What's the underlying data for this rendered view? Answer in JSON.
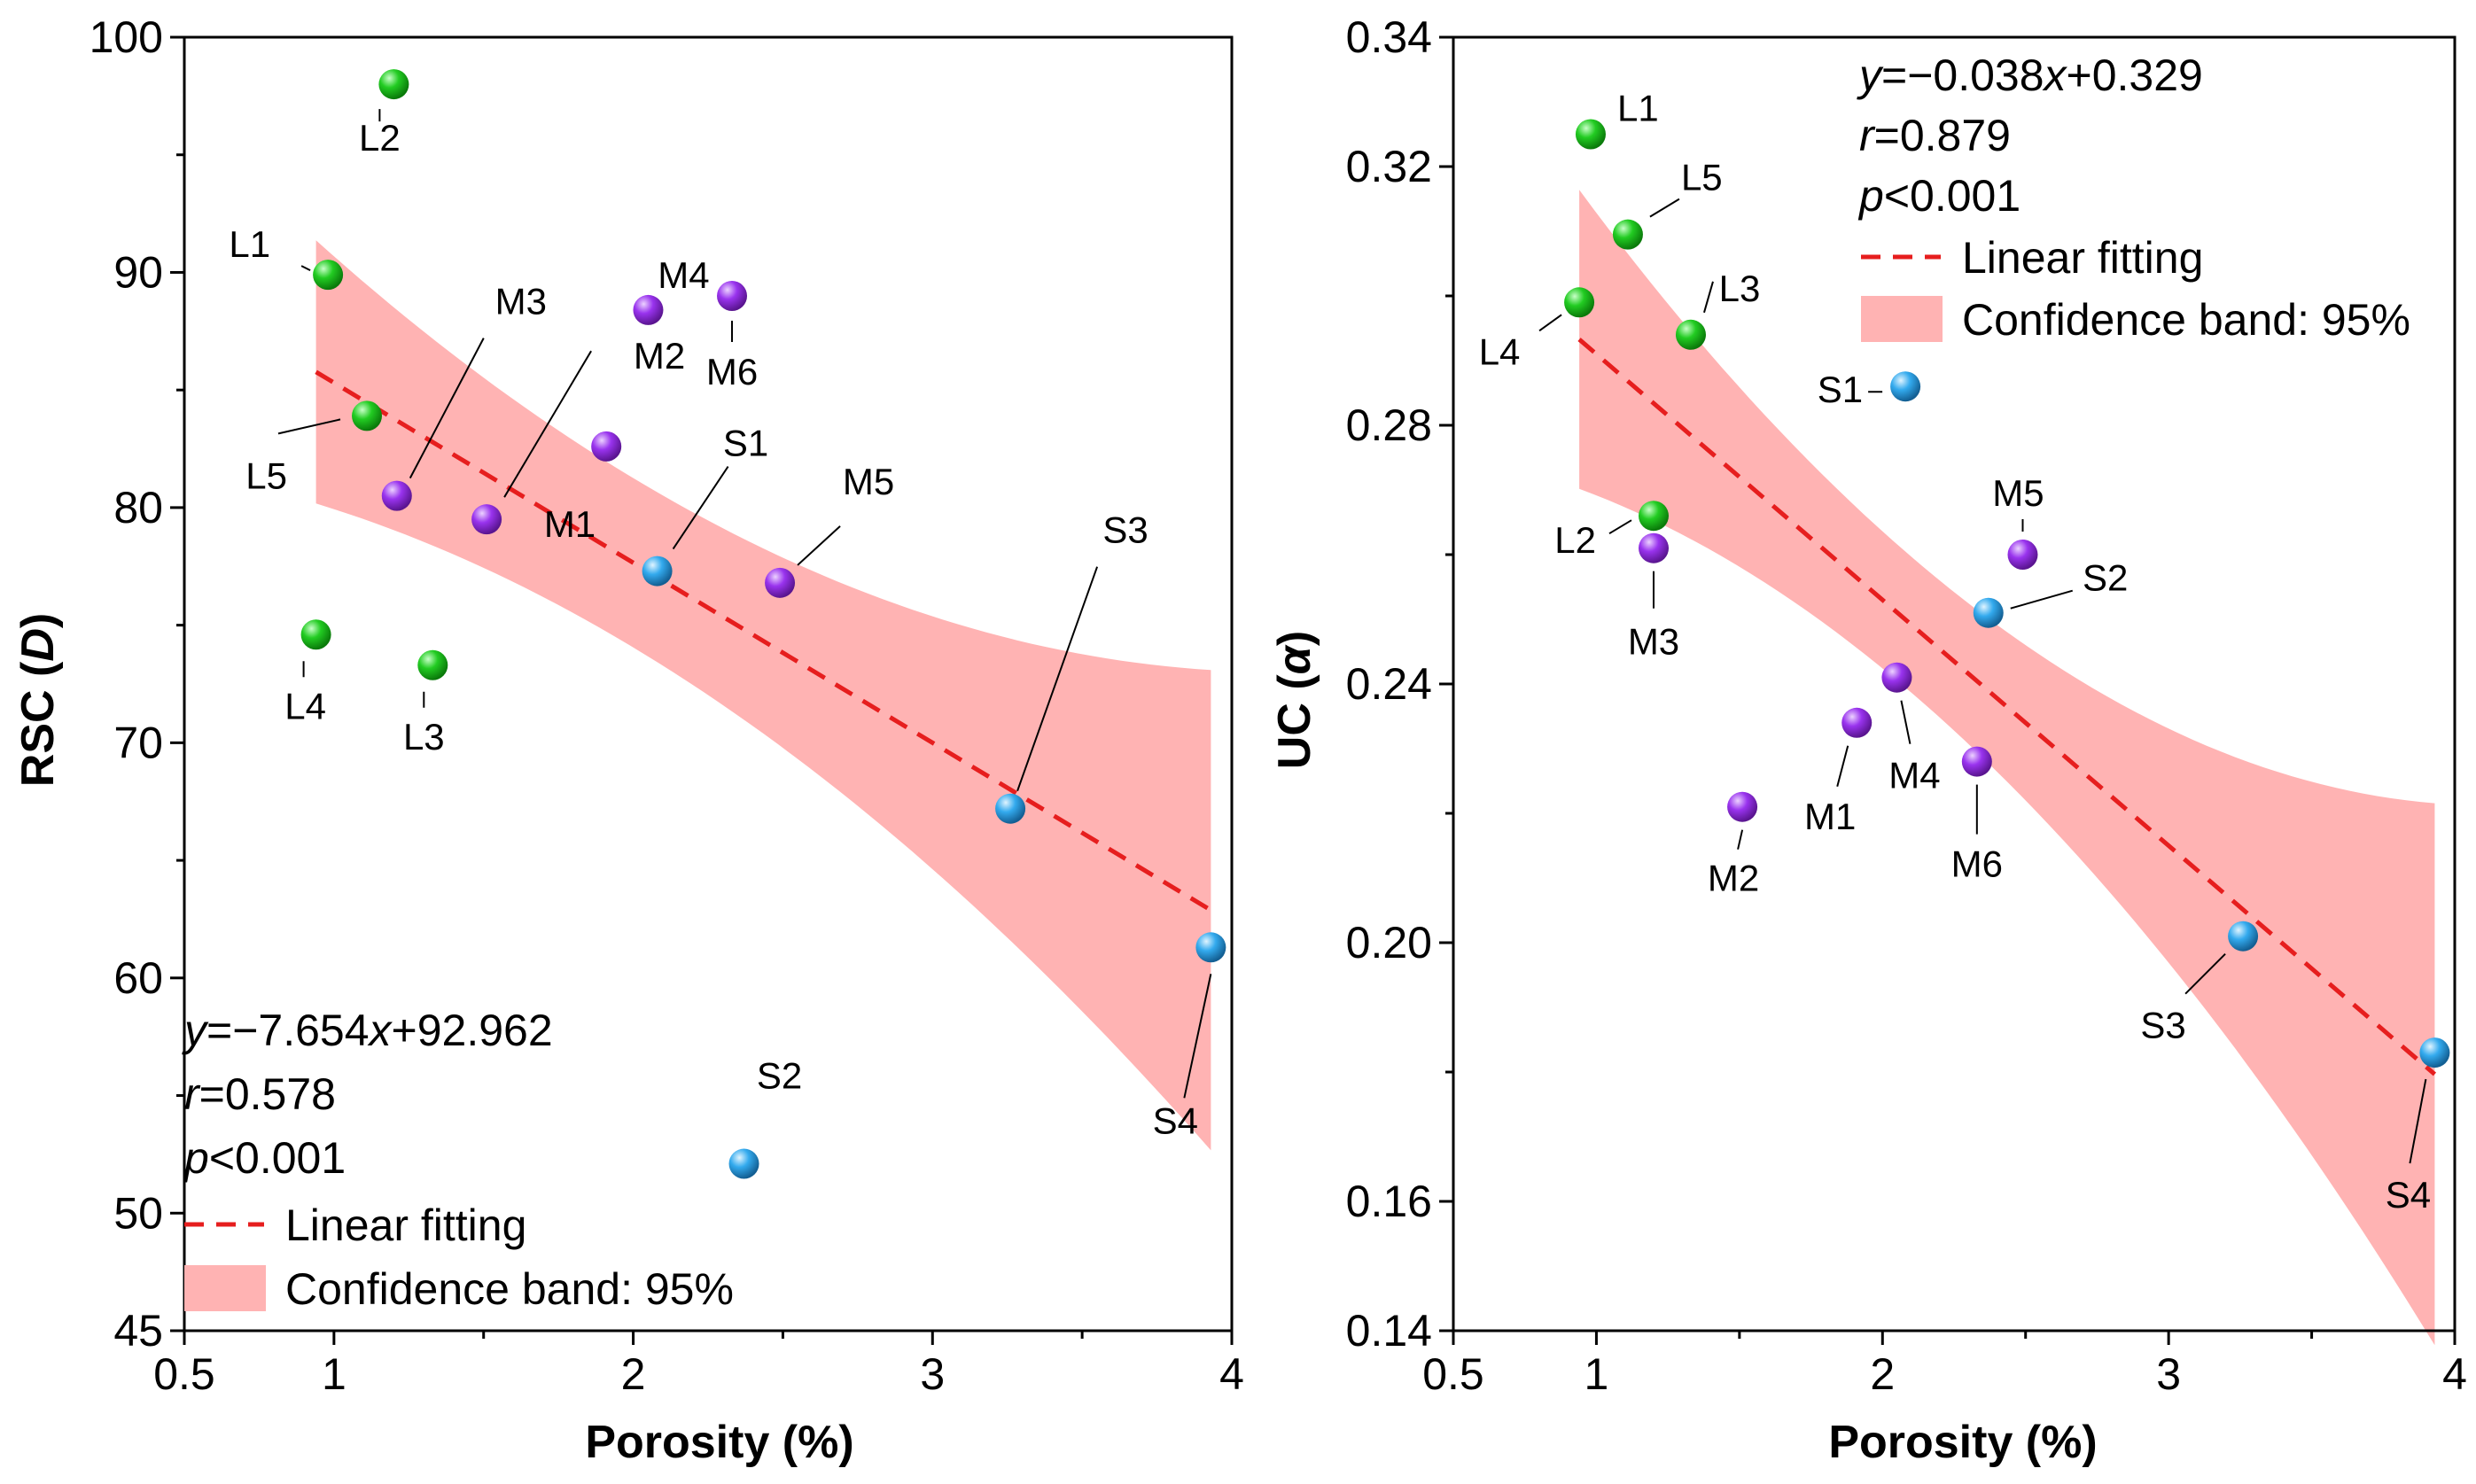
{
  "chart_data": [
    {
      "type": "scatter",
      "xlabel": "Porosity (%)",
      "ylabel": "RSC (D)",
      "xlim": [
        0.5,
        4
      ],
      "ylim": [
        45,
        100
      ],
      "xticks": [
        "0.5",
        "1",
        "2",
        "3",
        "4"
      ],
      "yticks": [
        "45",
        "50",
        "60",
        "70",
        "80",
        "90",
        "100"
      ],
      "points": [
        {
          "label": "L2",
          "x": 1.2,
          "y": 98.0,
          "group": "L"
        },
        {
          "label": "L1",
          "x": 0.98,
          "y": 89.9,
          "group": "L"
        },
        {
          "label": "L5",
          "x": 1.11,
          "y": 83.9,
          "group": "L"
        },
        {
          "label": "L4",
          "x": 0.94,
          "y": 74.6,
          "group": "L"
        },
        {
          "label": "L3",
          "x": 1.33,
          "y": 73.3,
          "group": "L"
        },
        {
          "label": "M4",
          "x": 2.05,
          "y": 88.4,
          "group": "M"
        },
        {
          "label": "M6",
          "x": 2.33,
          "y": 89.0,
          "group": "M"
        },
        {
          "label": "M1",
          "x": 1.91,
          "y": 82.6,
          "group": "M"
        },
        {
          "label": "M3",
          "x": 1.21,
          "y": 80.5,
          "group": "M"
        },
        {
          "label": "M2",
          "x": 1.51,
          "y": 79.5,
          "group": "M"
        },
        {
          "label": "M5",
          "x": 2.49,
          "y": 76.8,
          "group": "M"
        },
        {
          "label": "S1",
          "x": 2.08,
          "y": 77.3,
          "group": "S"
        },
        {
          "label": "S3",
          "x": 3.26,
          "y": 67.2,
          "group": "S"
        },
        {
          "label": "S4",
          "x": 3.93,
          "y": 61.3,
          "group": "S"
        },
        {
          "label": "S2",
          "x": 2.37,
          "y": 52.1,
          "group": "S"
        }
      ],
      "fit": {
        "slope": -7.654,
        "intercept": 92.962,
        "x_range": [
          0.94,
          3.93
        ]
      },
      "stats": {
        "equation": "y=−7.654x+92.962",
        "r": "r=0.578",
        "p": "p<0.001"
      },
      "legend": {
        "line": "Linear fitting",
        "band": "Confidence band: 95%"
      }
    },
    {
      "type": "scatter",
      "xlabel": "Porosity (%)",
      "ylabel": "UC (α)",
      "xlim": [
        0.5,
        4
      ],
      "ylim": [
        0.14,
        0.34
      ],
      "xticks": [
        "0.5",
        "1",
        "2",
        "3",
        "4"
      ],
      "yticks": [
        "0.14",
        "0.16",
        "0.20",
        "0.24",
        "0.28",
        "0.32",
        "0.34"
      ],
      "points": [
        {
          "label": "L1",
          "x": 0.98,
          "y": 0.325,
          "group": "L"
        },
        {
          "label": "L5",
          "x": 1.11,
          "y": 0.3095,
          "group": "L"
        },
        {
          "label": "L4",
          "x": 0.94,
          "y": 0.299,
          "group": "L"
        },
        {
          "label": "L3",
          "x": 1.33,
          "y": 0.294,
          "group": "L"
        },
        {
          "label": "L2",
          "x": 1.2,
          "y": 0.266,
          "group": "L"
        },
        {
          "label": "M3",
          "x": 1.2,
          "y": 0.261,
          "group": "M"
        },
        {
          "label": "M5",
          "x": 2.49,
          "y": 0.26,
          "group": "M"
        },
        {
          "label": "M4",
          "x": 2.05,
          "y": 0.241,
          "group": "M"
        },
        {
          "label": "M1",
          "x": 1.91,
          "y": 0.234,
          "group": "M"
        },
        {
          "label": "M6",
          "x": 2.33,
          "y": 0.228,
          "group": "M"
        },
        {
          "label": "M2",
          "x": 1.51,
          "y": 0.221,
          "group": "M"
        },
        {
          "label": "S1",
          "x": 2.08,
          "y": 0.286,
          "group": "S"
        },
        {
          "label": "S2",
          "x": 2.37,
          "y": 0.251,
          "group": "S"
        },
        {
          "label": "S3",
          "x": 3.26,
          "y": 0.201,
          "group": "S"
        },
        {
          "label": "S4",
          "x": 3.93,
          "y": 0.183,
          "group": "S"
        }
      ],
      "fit": {
        "slope": -0.038,
        "intercept": 0.329,
        "x_range": [
          0.94,
          3.93
        ]
      },
      "stats": {
        "equation": "y=−0.038x+0.329",
        "r": "r=0.879",
        "p": "p<0.001"
      },
      "legend": {
        "line": "Linear fitting",
        "band": "Confidence band: 95%"
      }
    }
  ],
  "colors": {
    "L": "#22cc22",
    "M": "#9933ee",
    "S": "#33aaee",
    "fit_line": "#e61e1e",
    "band": "#ffb3b3"
  }
}
